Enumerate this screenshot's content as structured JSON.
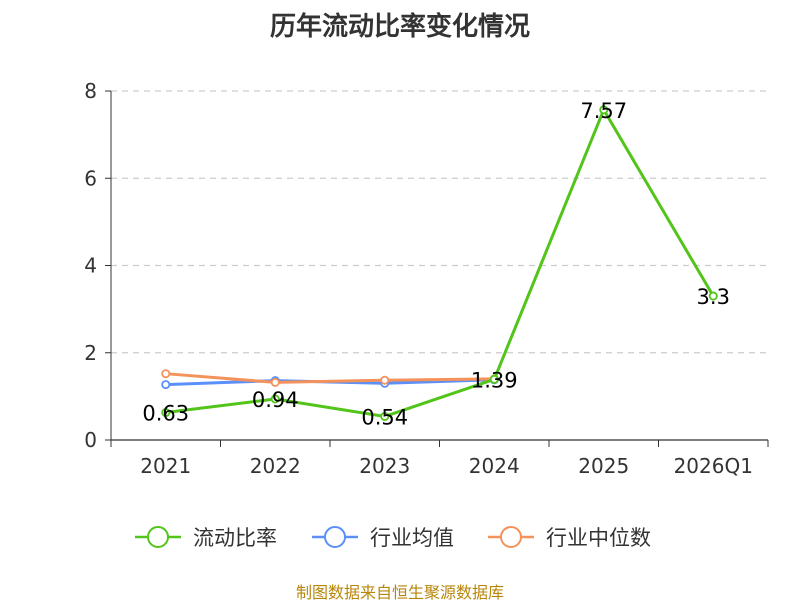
{
  "chart_data": {
    "type": "line",
    "title": "历年流动比率变化情况",
    "categories": [
      "2021",
      "2022",
      "2023",
      "2024",
      "2025",
      "2026Q1"
    ],
    "ylim": [
      0,
      8
    ],
    "yticks": [
      0,
      2,
      4,
      6,
      8
    ],
    "grid": true,
    "legend_position": "bottom",
    "series": [
      {
        "name": "流动比率",
        "color": "#52c41a",
        "values": [
          0.63,
          0.94,
          0.54,
          1.39,
          7.57,
          3.3
        ],
        "labels": [
          "0.63",
          "0.94",
          "0.54",
          "1.39",
          "7.57",
          "3.3"
        ]
      },
      {
        "name": "行业均值",
        "color": "#5b8ff9",
        "values": [
          1.27,
          1.36,
          1.3,
          1.38,
          null,
          null
        ]
      },
      {
        "name": "行业中位数",
        "color": "#f4925b",
        "values": [
          1.52,
          1.32,
          1.37,
          1.4,
          null,
          null
        ]
      }
    ]
  },
  "source_note": "制图数据来自恒生聚源数据库"
}
